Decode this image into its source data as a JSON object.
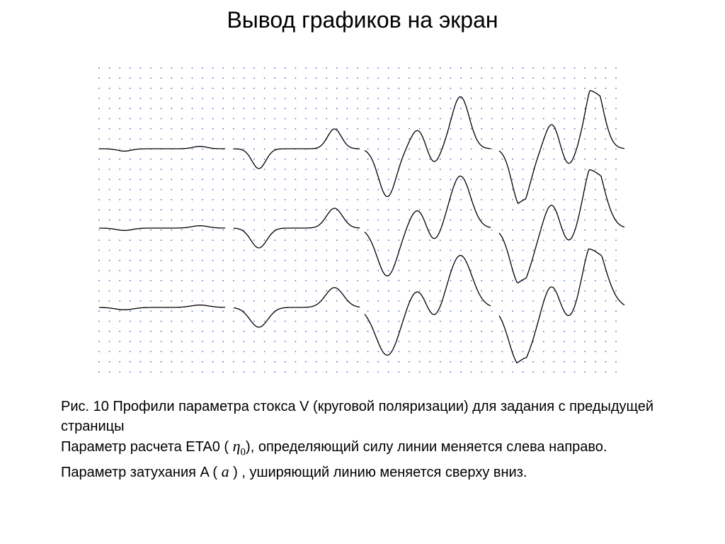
{
  "slide": {
    "title": "Вывод графиков на экран"
  },
  "caption": {
    "line1": "Рис. 10 Профили параметра стокса V (круговой поляризации) для задания с предыдущей страницы",
    "line2_before": "Параметр расчета ETA0 (",
    "line2_symbol": "η",
    "line2_symbol_sub": "0",
    "line2_after": "), определяющий силу линии меняется слева направо.",
    "line3_before": "Параметр затухания A (",
    "line3_symbol": "a",
    "line3_after": ") , уширяющий линию меняется сверху вниз."
  },
  "figure": {
    "grid": "dotted",
    "grid_color": "#4a6fc7",
    "line_color": "#000000",
    "rows": 3,
    "cols": 4,
    "amplitude_by_column": [
      0.12,
      1.0,
      2.1,
      2.6
    ],
    "width_by_row": [
      1.0,
      1.15,
      1.3
    ]
  }
}
